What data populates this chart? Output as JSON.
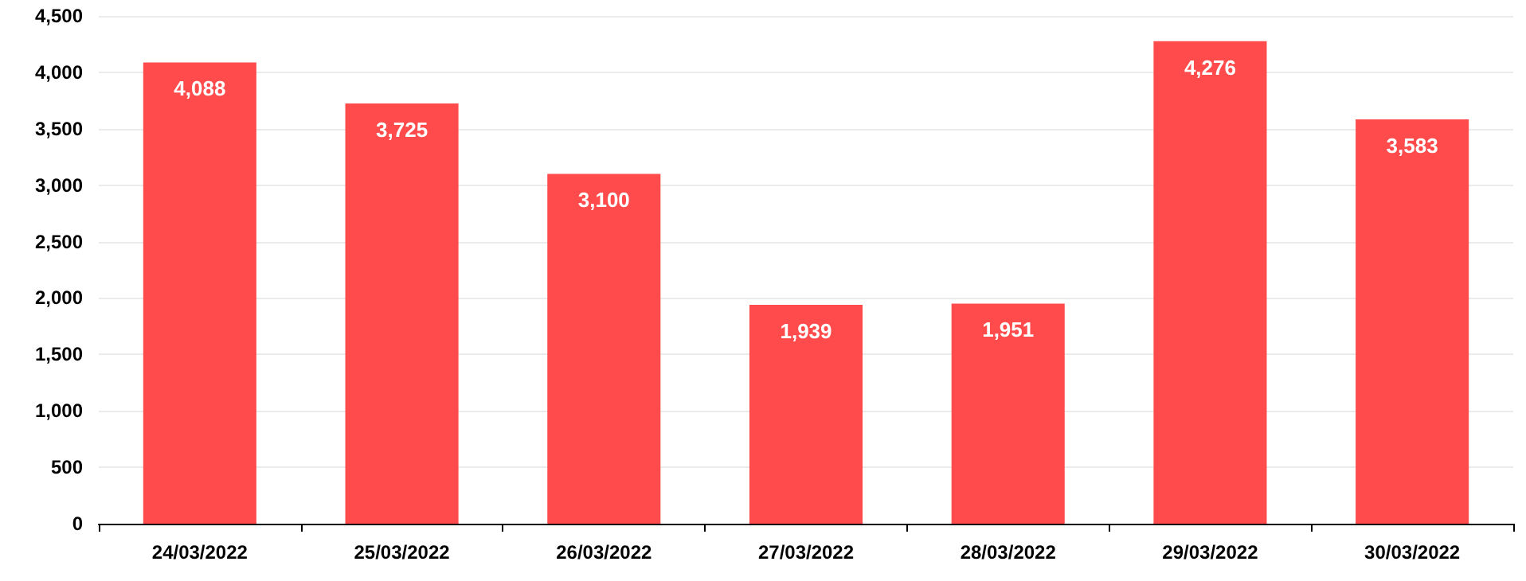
{
  "chart_data": {
    "type": "bar",
    "categories": [
      "24/03/2022",
      "25/03/2022",
      "26/03/2022",
      "27/03/2022",
      "28/03/2022",
      "29/03/2022",
      "30/03/2022"
    ],
    "values": [
      4088,
      3725,
      3100,
      1939,
      1951,
      4276,
      3583
    ],
    "value_labels": [
      "4,088",
      "3,725",
      "3,100",
      "1,939",
      "1,951",
      "4,276",
      "3,583"
    ],
    "color": "#ff4b4b",
    "ylim": [
      0,
      4500
    ],
    "yticks": [
      0,
      500,
      {
        "value": 1000,
        "label": "1,000"
      },
      {
        "value": 1500,
        "label": "1,500"
      },
      {
        "value": 2000,
        "label": "2,000"
      },
      {
        "value": 2500,
        "label": "2,500"
      },
      {
        "value": 3000,
        "label": "3,000"
      },
      {
        "value": 3500,
        "label": "3,500"
      },
      {
        "value": 4000,
        "label": "4,000"
      },
      {
        "value": 4500,
        "label": "4,500"
      }
    ],
    "grid": "y"
  }
}
